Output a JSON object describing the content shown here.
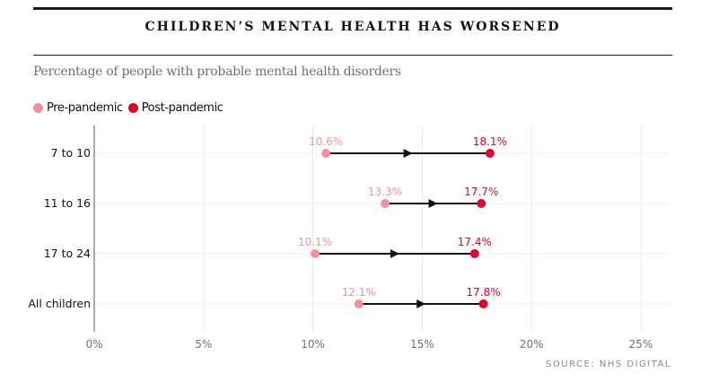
{
  "header": {
    "title": "CHILDREN’S MENTAL HEALTH HAS WORSENED",
    "subtitle": "Percentage of people with probable mental health disorders"
  },
  "legend": [
    {
      "label": "Pre-pandemic",
      "color": "#f58f9d"
    },
    {
      "label": "Post-pandemic",
      "color": "#e3002b"
    }
  ],
  "source": "SOURCE: NHS DIGITAL",
  "chart_data": {
    "type": "dumbbell",
    "title": "CHILDREN’S MENTAL HEALTH HAS WORSENED",
    "subtitle": "Percentage of people with probable mental health disorders",
    "categories": [
      "7 to 10",
      "11 to 16",
      "17 to 24",
      "All children"
    ],
    "series": [
      {
        "name": "Pre-pandemic",
        "color": "#f58f9d",
        "values": [
          10.6,
          13.3,
          10.1,
          12.1
        ]
      },
      {
        "name": "Post-pandemic",
        "color": "#e3002b",
        "values": [
          18.1,
          17.7,
          17.4,
          17.8
        ]
      }
    ],
    "labels": {
      "pre": [
        "10.6%",
        "13.3%",
        "10.1%",
        "12.1%"
      ],
      "post": [
        "18.1%",
        "17.7%",
        "17.4%",
        "17.8%"
      ]
    },
    "xlim": [
      0,
      25
    ],
    "xticks": [
      0,
      5,
      10,
      15,
      20,
      25
    ],
    "xtick_labels": [
      "0%",
      "5%",
      "10%",
      "15%",
      "20%",
      "25%"
    ],
    "xlabel": "",
    "ylabel": "",
    "grid": true,
    "legend_position": "top-left",
    "arrow_color": "#121212"
  }
}
